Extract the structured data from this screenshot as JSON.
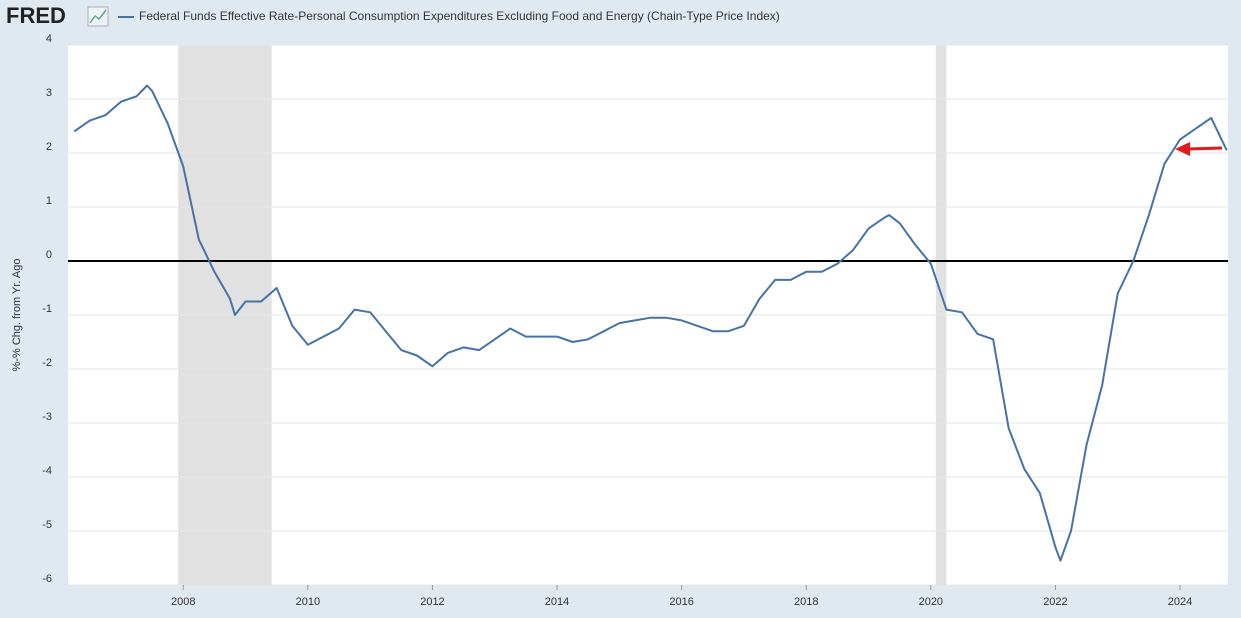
{
  "brand": "FRED",
  "chart_data": {
    "type": "line",
    "y_label": "%-% Chg. from Yr. Ago",
    "series": [
      {
        "name": "Federal Funds Effective Rate-Personal Consumption Expenditures Excluding Food and Energy (Chain-Type Price Index)",
        "color": "#4572a7",
        "values": [
          2.4,
          2.6,
          2.7,
          2.95,
          3.05,
          3.25,
          3.15,
          2.55,
          1.75,
          0.4,
          -0.2,
          -0.7,
          -1.0,
          -0.75,
          -0.75,
          -0.5,
          -1.2,
          -1.55,
          -1.4,
          -1.25,
          -0.9,
          -0.95,
          -1.3,
          -1.65,
          -1.75,
          -1.95,
          -1.7,
          -1.6,
          -1.65,
          -1.45,
          -1.25,
          -1.4,
          -1.4,
          -1.4,
          -1.5,
          -1.45,
          -1.3,
          -1.15,
          -1.1,
          -1.05,
          -1.05,
          -1.1,
          -1.2,
          -1.3,
          -1.3,
          -1.2,
          -0.7,
          -0.35,
          -0.35,
          -0.2,
          -0.2,
          -0.05,
          0.2,
          0.6,
          0.8,
          0.85,
          0.7,
          0.3,
          -0.05,
          -0.9,
          -0.95,
          -1.35,
          -1.45,
          -3.1,
          -3.85,
          -4.3,
          -5.3,
          -5.55,
          -5.0,
          -3.4,
          -2.3,
          -0.6,
          0.0,
          0.85,
          1.8,
          2.25,
          2.45,
          2.65,
          2.05
        ]
      }
    ],
    "x": [
      2006.25,
      2006.5,
      2006.75,
      2007.0,
      2007.25,
      2007.42,
      2007.5,
      2007.75,
      2008.0,
      2008.25,
      2008.5,
      2008.75,
      2008.83,
      2009.0,
      2009.25,
      2009.5,
      2009.75,
      2010.0,
      2010.25,
      2010.5,
      2010.75,
      2011.0,
      2011.25,
      2011.5,
      2011.75,
      2012.0,
      2012.25,
      2012.5,
      2012.75,
      2013.0,
      2013.25,
      2013.5,
      2013.75,
      2014.0,
      2014.25,
      2014.5,
      2014.75,
      2015.0,
      2015.25,
      2015.5,
      2015.75,
      2016.0,
      2016.25,
      2016.5,
      2016.75,
      2017.0,
      2017.25,
      2017.5,
      2017.75,
      2018.0,
      2018.25,
      2018.5,
      2018.75,
      2019.0,
      2019.25,
      2019.33,
      2019.5,
      2019.75,
      2020.0,
      2020.25,
      2020.5,
      2020.75,
      2021.0,
      2021.25,
      2021.5,
      2021.75,
      2022.0,
      2022.08,
      2022.25,
      2022.5,
      2022.75,
      2023.0,
      2023.25,
      2023.5,
      2023.75,
      2024.0,
      2024.25,
      2024.5,
      2024.75
    ],
    "recessions": [
      [
        2007.92,
        2009.42
      ],
      [
        2020.08,
        2020.25
      ]
    ],
    "xlim": [
      2006.15,
      2024.77
    ],
    "xticks": [
      2008,
      2010,
      2012,
      2014,
      2016,
      2018,
      2020,
      2022,
      2024
    ],
    "ylim": [
      -6,
      4
    ],
    "yticks": [
      -6,
      -5,
      -4,
      -3,
      -2,
      -1,
      0,
      1,
      2,
      3,
      4
    ],
    "grid": true
  }
}
